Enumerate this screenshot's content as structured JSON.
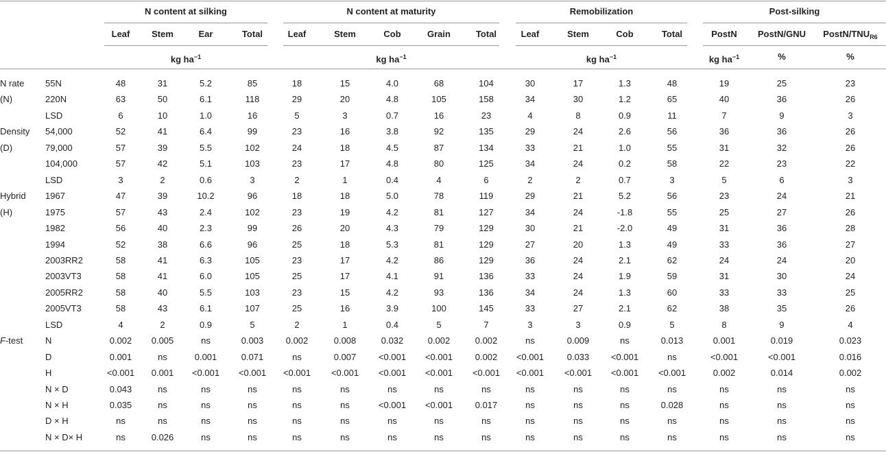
{
  "table": {
    "groups": [
      {
        "title": "N content at silking",
        "columns": [
          "Leaf",
          "Stem",
          "Ear",
          "Total"
        ],
        "units": [
          {
            "text": "kg ha",
            "sup": "−1"
          }
        ]
      },
      {
        "title": "N content at maturity",
        "columns": [
          "Leaf",
          "Stem",
          "Cob",
          "Grain",
          "Total"
        ],
        "units": [
          {
            "text": "kg ha",
            "sup": "−1"
          }
        ]
      },
      {
        "title": "Remobilization",
        "columns": [
          "Leaf",
          "Stem",
          "Cob",
          "Total"
        ],
        "units": [
          {
            "text": "kg ha",
            "sup": "−1"
          }
        ]
      },
      {
        "title": "Post-silking",
        "columns": [
          "PostN",
          "PostN/GNU",
          {
            "text": "PostN/TNU",
            "sub": "R6"
          }
        ],
        "units": [
          {
            "text": "kg ha",
            "sup": "−1"
          },
          "%",
          "%"
        ]
      }
    ],
    "rows": [
      {
        "label": "N rate",
        "sub": "55N",
        "values": [
          "48",
          "31",
          "5.2",
          "85",
          "18",
          "15",
          "4.0",
          "68",
          "104",
          "30",
          "17",
          "1.3",
          "48",
          "19",
          "25",
          "23"
        ]
      },
      {
        "label": "(N)",
        "sub": "220N",
        "values": [
          "63",
          "50",
          "6.1",
          "118",
          "29",
          "20",
          "4.8",
          "105",
          "158",
          "34",
          "30",
          "1.2",
          "65",
          "40",
          "36",
          "26"
        ]
      },
      {
        "sub": "LSD",
        "values": [
          "6",
          "10",
          "1.0",
          "16",
          "5",
          "3",
          "0.7",
          "16",
          "23",
          "4",
          "8",
          "0.9",
          "11",
          "7",
          "9",
          "3"
        ]
      },
      {
        "label": "Density",
        "sub": "54,000",
        "values": [
          "52",
          "41",
          "6.4",
          "99",
          "23",
          "16",
          "3.8",
          "92",
          "135",
          "29",
          "24",
          "2.6",
          "56",
          "36",
          "36",
          "26"
        ]
      },
      {
        "label": "(D)",
        "sub": "79,000",
        "values": [
          "57",
          "39",
          "5.5",
          "102",
          "24",
          "18",
          "4.5",
          "87",
          "134",
          "33",
          "21",
          "1.0",
          "55",
          "31",
          "32",
          "26"
        ]
      },
      {
        "sub": "104,000",
        "values": [
          "57",
          "42",
          "5.1",
          "103",
          "23",
          "17",
          "4.8",
          "80",
          "125",
          "34",
          "24",
          "0.2",
          "58",
          "22",
          "23",
          "22"
        ]
      },
      {
        "sub": "LSD",
        "values": [
          "3",
          "2",
          "0.6",
          "3",
          "2",
          "1",
          "0.4",
          "4",
          "6",
          "2",
          "2",
          "0.7",
          "3",
          "5",
          "6",
          "3"
        ]
      },
      {
        "label": "Hybrid",
        "sub": "1967",
        "values": [
          "47",
          "39",
          "10.2",
          "96",
          "18",
          "18",
          "5.0",
          "78",
          "119",
          "29",
          "21",
          "5.2",
          "56",
          "23",
          "24",
          "21"
        ]
      },
      {
        "label": "(H)",
        "sub": "1975",
        "values": [
          "57",
          "43",
          "2.4",
          "102",
          "23",
          "19",
          "4.2",
          "81",
          "127",
          "34",
          "24",
          "-1.8",
          "55",
          "25",
          "27",
          "26"
        ]
      },
      {
        "sub": "1982",
        "values": [
          "56",
          "40",
          "2.3",
          "99",
          "26",
          "20",
          "4.3",
          "79",
          "129",
          "30",
          "21",
          "-2.0",
          "49",
          "31",
          "36",
          "28"
        ]
      },
      {
        "sub": "1994",
        "values": [
          "52",
          "38",
          "6.6",
          "96",
          "25",
          "18",
          "5.3",
          "81",
          "129",
          "27",
          "20",
          "1.3",
          "49",
          "33",
          "36",
          "27"
        ]
      },
      {
        "sub": "2003RR2",
        "values": [
          "58",
          "41",
          "6.3",
          "105",
          "23",
          "17",
          "4.2",
          "86",
          "129",
          "36",
          "24",
          "2.1",
          "62",
          "24",
          "24",
          "20"
        ]
      },
      {
        "sub": "2003VT3",
        "values": [
          "58",
          "41",
          "6.0",
          "105",
          "25",
          "17",
          "4.1",
          "91",
          "136",
          "33",
          "24",
          "1.9",
          "59",
          "31",
          "30",
          "24"
        ]
      },
      {
        "sub": "2005RR2",
        "values": [
          "58",
          "40",
          "5.5",
          "103",
          "23",
          "15",
          "4.2",
          "93",
          "136",
          "34",
          "24",
          "1.3",
          "60",
          "33",
          "33",
          "25"
        ]
      },
      {
        "sub": "2005VT3",
        "values": [
          "58",
          "43",
          "6.1",
          "107",
          "25",
          "16",
          "3.9",
          "100",
          "145",
          "33",
          "27",
          "2.1",
          "62",
          "38",
          "35",
          "26"
        ]
      },
      {
        "sub": "LSD",
        "values": [
          "4",
          "2",
          "0.9",
          "5",
          "2",
          "1",
          "0.4",
          "5",
          "7",
          "3",
          "3",
          "0.9",
          "5",
          "8",
          "9",
          "4"
        ]
      },
      {
        "label": {
          "italic": "F",
          "text": "-test"
        },
        "sub": "N",
        "values": [
          "0.002",
          "0.005",
          "ns",
          "0.003",
          "0.002",
          "0.008",
          "0.032",
          "0.002",
          "0.002",
          "ns",
          "0.009",
          "ns",
          "0.013",
          "0.001",
          "0.019",
          "0.023"
        ]
      },
      {
        "sub": "D",
        "values": [
          "0.001",
          "ns",
          "0.001",
          "0.071",
          "ns",
          "0.007",
          "<0.001",
          "<0.001",
          "0.002",
          "<0.001",
          "0.033",
          "<0.001",
          "ns",
          "<0.001",
          "<0.001",
          "0.016"
        ]
      },
      {
        "sub": "H",
        "values": [
          "<0.001",
          "0.001",
          "<0.001",
          "<0.001",
          "<0.001",
          "<0.001",
          "<0.001",
          "<0.001",
          "<0.001",
          "<0.001",
          "<0.001",
          "<0.001",
          "<0.001",
          "0.002",
          "0.014",
          "0.002"
        ]
      },
      {
        "sub": "N × D",
        "values": [
          "0.043",
          "ns",
          "ns",
          "ns",
          "ns",
          "ns",
          "ns",
          "ns",
          "ns",
          "ns",
          "ns",
          "ns",
          "ns",
          "ns",
          "ns",
          "ns"
        ]
      },
      {
        "sub": "N × H",
        "values": [
          "0.035",
          "ns",
          "ns",
          "ns",
          "ns",
          "ns",
          "<0.001",
          "<0.001",
          "0.017",
          "ns",
          "ns",
          "ns",
          "0.028",
          "ns",
          "ns",
          "ns"
        ]
      },
      {
        "sub": "D × H",
        "values": [
          "ns",
          "ns",
          "ns",
          "ns",
          "ns",
          "ns",
          "ns",
          "ns",
          "ns",
          "ns",
          "ns",
          "ns",
          "ns",
          "ns",
          "ns",
          "ns"
        ]
      },
      {
        "sub": "N × D× H",
        "values": [
          "ns",
          "0.026",
          "ns",
          "ns",
          "ns",
          "ns",
          "ns",
          "ns",
          "ns",
          "ns",
          "ns",
          "ns",
          "ns",
          "ns",
          "ns",
          "ns"
        ]
      }
    ]
  }
}
